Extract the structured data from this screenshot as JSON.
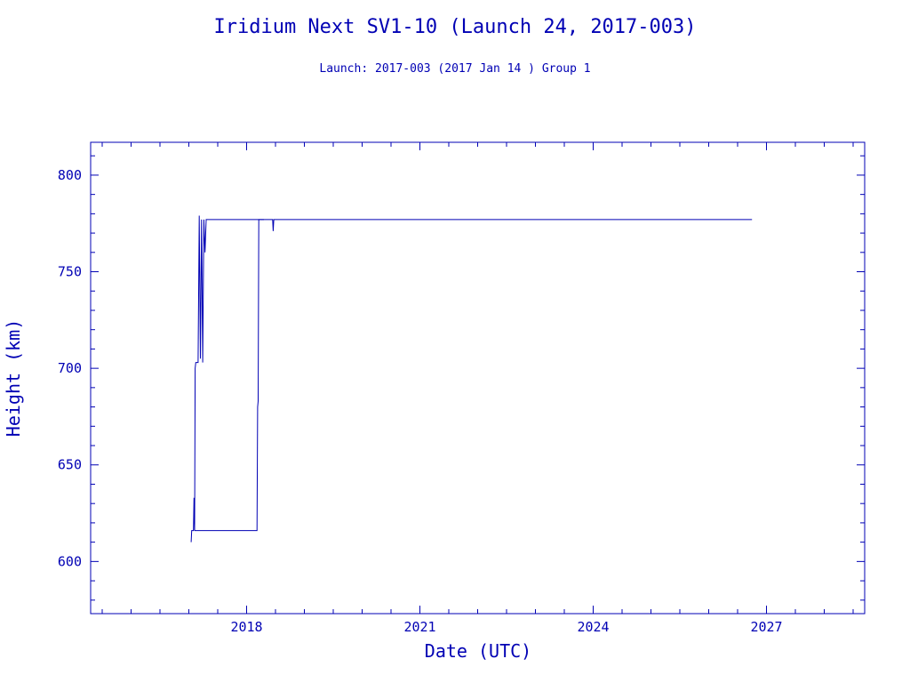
{
  "chart_data": {
    "type": "line",
    "title": "Iridium Next SV1-10 (Launch 24, 2017-003)",
    "subtitle": "Launch: 2017-003  (2017 Jan 14 )  Group 1",
    "xlabel": "Date (UTC)",
    "ylabel": "Height (km)",
    "xlim": [
      2015.3,
      2028.7
    ],
    "ylim": [
      573,
      817
    ],
    "x_tick_labels": [
      "2018",
      "2021",
      "2024",
      "2027"
    ],
    "x_tick_values": [
      2018,
      2021,
      2024,
      2027
    ],
    "y_tick_labels": [
      "600",
      "650",
      "700",
      "750",
      "800"
    ],
    "y_tick_values": [
      600,
      650,
      700,
      750,
      800
    ],
    "grid": false,
    "color": "#0000b4",
    "series": [
      {
        "points": [
          [
            2017.04,
            610
          ],
          [
            2017.05,
            616
          ],
          [
            2017.08,
            616
          ],
          [
            2017.09,
            633
          ],
          [
            2017.1,
            616
          ],
          [
            2017.11,
            700
          ],
          [
            2017.12,
            703
          ],
          [
            2017.16,
            703
          ],
          [
            2017.18,
            779
          ],
          [
            2017.2,
            705
          ],
          [
            2017.22,
            777
          ],
          [
            2017.24,
            703
          ],
          [
            2017.26,
            777
          ],
          [
            2017.28,
            760
          ],
          [
            2017.3,
            777
          ],
          [
            2017.32,
            777
          ],
          [
            2018.3,
            777
          ],
          [
            2018.45,
            777
          ],
          [
            2018.46,
            771
          ],
          [
            2018.47,
            777
          ],
          [
            2021.0,
            777
          ],
          [
            2024.0,
            777
          ],
          [
            2026.3,
            777
          ],
          [
            2026.75,
            777
          ]
        ]
      },
      {
        "points": [
          [
            2017.1,
            616
          ],
          [
            2017.5,
            616
          ],
          [
            2018.0,
            616
          ],
          [
            2018.18,
            616
          ],
          [
            2018.19,
            680
          ],
          [
            2018.2,
            683
          ],
          [
            2018.21,
            777
          ],
          [
            2018.3,
            777
          ]
        ]
      }
    ]
  }
}
